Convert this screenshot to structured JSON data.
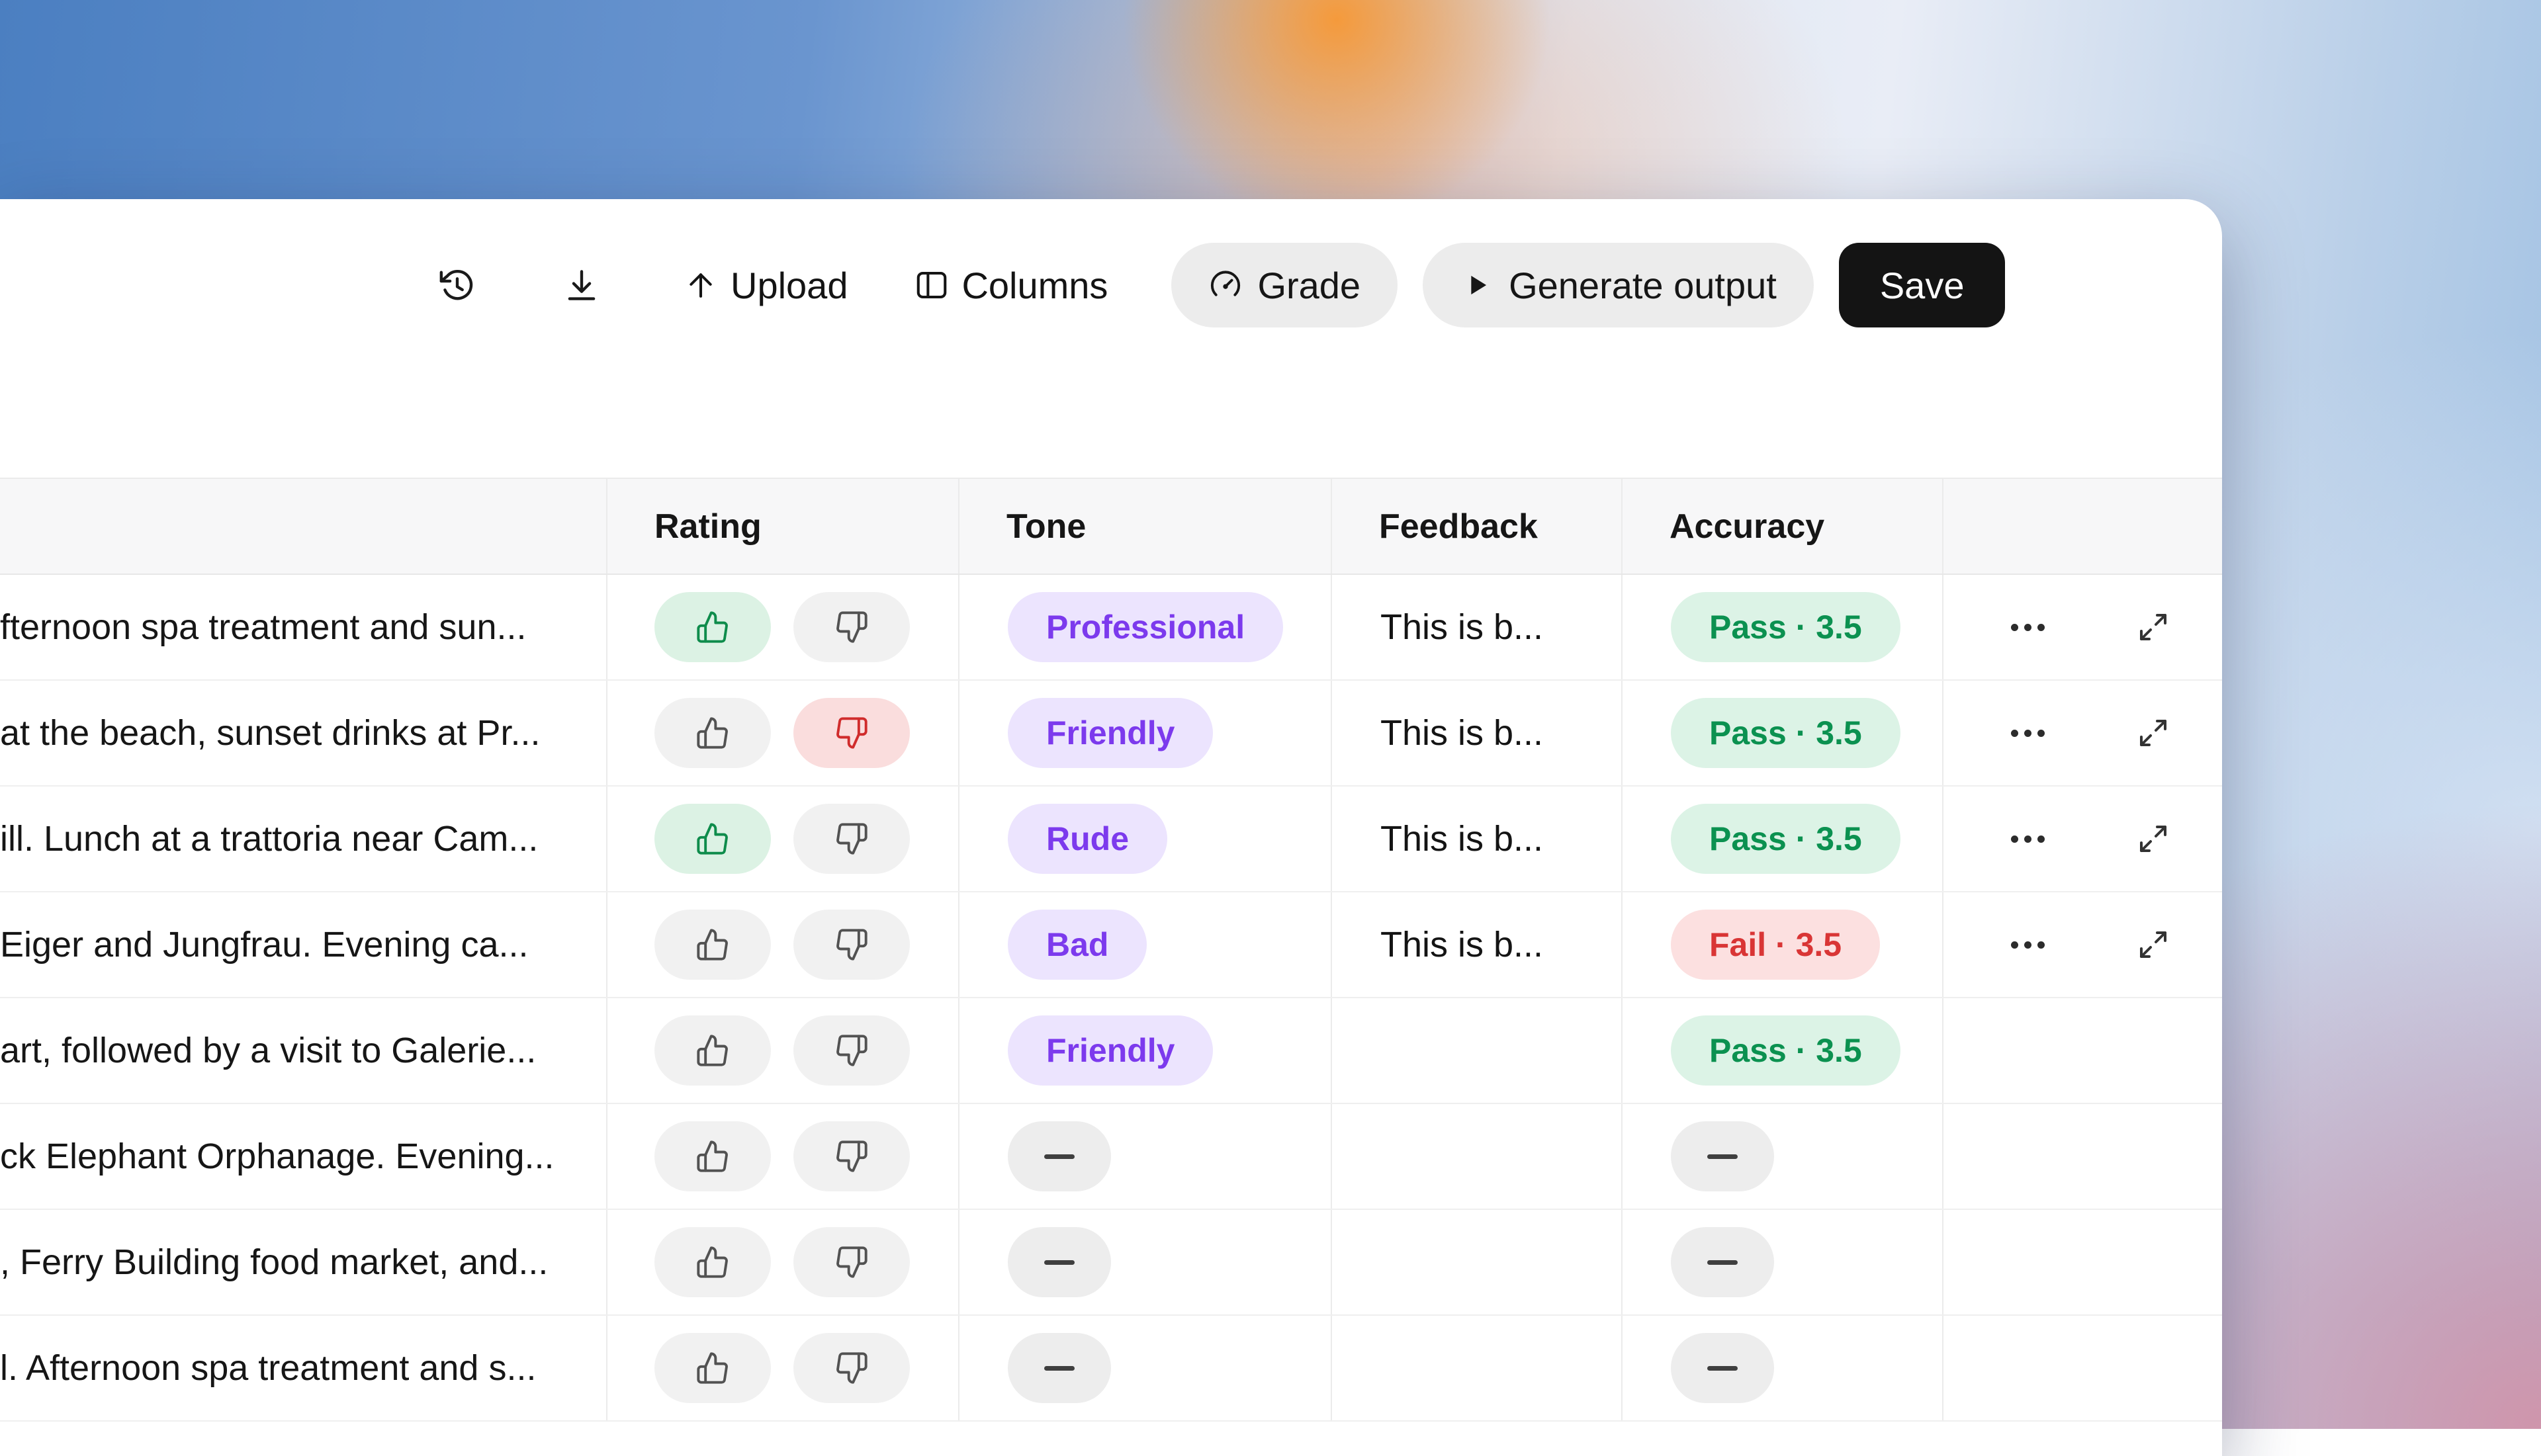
{
  "colors": {
    "purple_badge_bg": "#ece4fe",
    "purple_badge_text": "#7c3aed",
    "pass_badge_bg": "#dcf3e6",
    "pass_badge_text": "#0b9150",
    "fail_badge_bg": "#fce0e0",
    "fail_badge_text": "#d93535",
    "thumb_up_active_bg": "#dcf2e4",
    "thumb_up_active_icon": "#0e8c4b",
    "thumb_down_active_bg": "#fadddd",
    "thumb_down_active_icon": "#d02c2c",
    "neutral_pill_bg": "#ededed",
    "toolbar_button_bg": "#ececec",
    "save_button_bg": "#141414"
  },
  "toolbar": {
    "upload_label": "Upload",
    "columns_label": "Columns",
    "grade_label": "Grade",
    "generate_label": "Generate output",
    "save_label": "Save",
    "icons": [
      "history-icon",
      "download-icon",
      "arrow-up-icon",
      "columns-icon",
      "gauge-icon",
      "play-icon"
    ]
  },
  "table": {
    "columns": [
      {
        "key": "prompt",
        "label": ""
      },
      {
        "key": "rating",
        "label": "Rating"
      },
      {
        "key": "tone",
        "label": "Tone"
      },
      {
        "key": "feedback",
        "label": "Feedback"
      },
      {
        "key": "accuracy",
        "label": "Accuracy"
      },
      {
        "key": "actions",
        "label": ""
      }
    ],
    "rows": [
      {
        "text": "fternoon spa treatment and sun...",
        "thumb_up": true,
        "thumb_down": false,
        "tone": "Professional",
        "feedback": "This is b...",
        "accuracy": "Pass · 3.5",
        "accuracy_status": "pass",
        "has_actions": true
      },
      {
        "text": "at the beach, sunset drinks at Pr...",
        "thumb_up": false,
        "thumb_down": true,
        "tone": "Friendly",
        "feedback": "This is b...",
        "accuracy": "Pass · 3.5",
        "accuracy_status": "pass",
        "has_actions": true
      },
      {
        "text": "ill. Lunch at a trattoria near Cam...",
        "thumb_up": true,
        "thumb_down": false,
        "tone": "Rude",
        "feedback": "This is b...",
        "accuracy": "Pass · 3.5",
        "accuracy_status": "pass",
        "has_actions": true
      },
      {
        "text": "Eiger and Jungfrau. Evening ca...",
        "thumb_up": false,
        "thumb_down": false,
        "tone": "Bad",
        "feedback": "This is b...",
        "accuracy": "Fail · 3.5",
        "accuracy_status": "fail",
        "has_actions": true
      },
      {
        "text": "art, followed by a visit to Galerie...",
        "thumb_up": false,
        "thumb_down": false,
        "tone": "Friendly",
        "feedback": "",
        "accuracy": "Pass · 3.5",
        "accuracy_status": "pass",
        "has_actions": false
      },
      {
        "text": "ck Elephant Orphanage. Evening...",
        "thumb_up": false,
        "thumb_down": false,
        "tone": null,
        "feedback": "",
        "accuracy": null,
        "accuracy_status": "none",
        "has_actions": false
      },
      {
        "text": ", Ferry Building food market, and...",
        "thumb_up": false,
        "thumb_down": false,
        "tone": null,
        "feedback": "",
        "accuracy": null,
        "accuracy_status": "none",
        "has_actions": false
      },
      {
        "text": "l. Afternoon spa treatment and s...",
        "thumb_up": false,
        "thumb_down": false,
        "tone": null,
        "feedback": "",
        "accuracy": null,
        "accuracy_status": "none",
        "has_actions": false
      }
    ]
  }
}
